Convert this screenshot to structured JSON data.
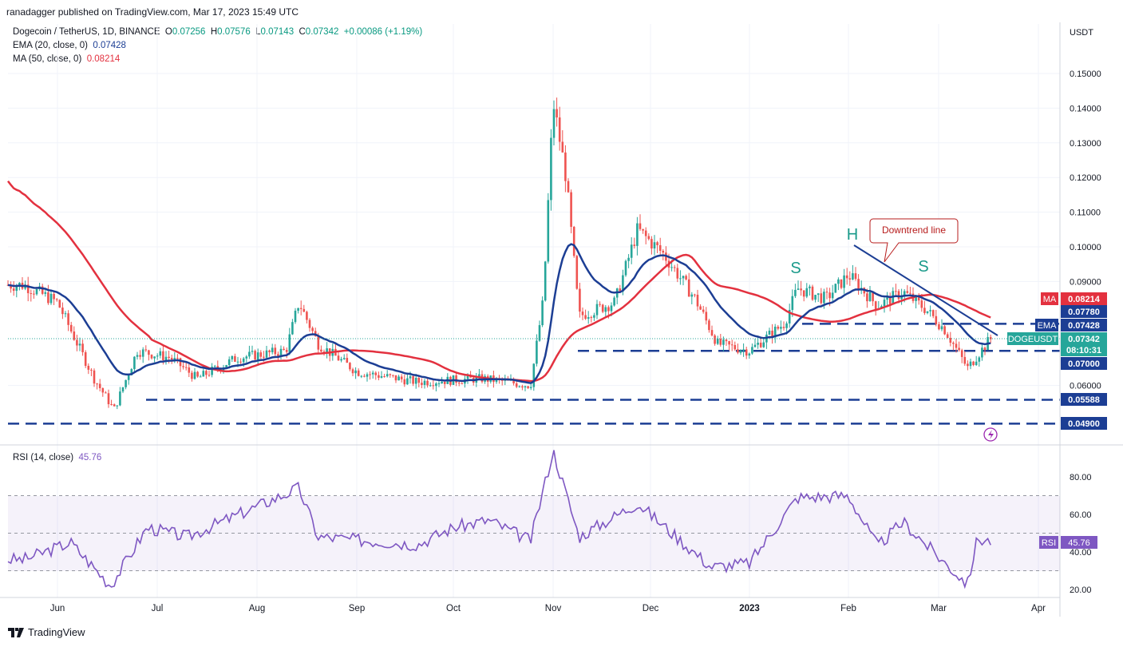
{
  "header": {
    "publisher": "ranadagger published on TradingView.com, Mar 17, 2023 15:49 UTC"
  },
  "legend": {
    "symbol": "Dogecoin / TetherUS, 1D, BINANCE",
    "o_label": "O",
    "o": "0.07256",
    "h_label": "H",
    "h": "0.07576",
    "l_label": "L",
    "l": "0.07143",
    "c_label": "C",
    "c": "0.07342",
    "change": "+0.00086 (+1.19%)",
    "ema_label": "EMA (20, close, 0)",
    "ema_value": "0.07428",
    "ma_label": "MA (50, close, 0)",
    "ma_value": "0.08214"
  },
  "axis": {
    "currency": "USDT",
    "price_ticks": [
      "0.15000",
      "0.14000",
      "0.13000",
      "0.12000",
      "0.11000",
      "0.10000",
      "0.09000",
      "0.06000"
    ],
    "months": [
      "Jun",
      "Jul",
      "Aug",
      "Sep",
      "Oct",
      "Nov",
      "Dec",
      "2023",
      "Feb",
      "Mar",
      "Apr"
    ]
  },
  "price_labels": [
    {
      "text": "MA",
      "value": "0.08214",
      "color": "#e3313f"
    },
    {
      "text": "",
      "value": "0.07780",
      "color": "#1c3e94"
    },
    {
      "text": "EMA",
      "value": "0.07428",
      "color": "#1c3e94"
    },
    {
      "text": "DOGEUSDT",
      "value": "0.07342",
      "color": "#26a69a"
    },
    {
      "text": "",
      "value": "08:10:31",
      "color": "#26a69a"
    },
    {
      "text": "",
      "value": "0.07000",
      "color": "#1c3e94"
    },
    {
      "text": "",
      "value": "0.05588",
      "color": "#1c3e94"
    },
    {
      "text": "",
      "value": "0.04900",
      "color": "#1c3e94"
    }
  ],
  "annotations": {
    "downtrend": "Downtrend line",
    "h": "H",
    "s1": "S",
    "s2": "S"
  },
  "rsi": {
    "label": "RSI (14, close)",
    "value": "45.76",
    "badge": "RSI",
    "ticks": [
      "80.00",
      "60.00",
      "40.00",
      "20.00"
    ]
  },
  "footer": {
    "brand": "TradingView"
  },
  "chart_data": [
    {
      "type": "candlestick",
      "title": "Dogecoin / TetherUS, 1D, BINANCE",
      "x_range": [
        "2023-05-22",
        "2023-04-05"
      ],
      "x_note_months": [
        "Jun",
        "Jul",
        "Aug",
        "Sep",
        "Oct",
        "Nov",
        "Dec",
        "2023",
        "Feb",
        "Mar",
        "Apr"
      ],
      "ylim": [
        0.048,
        0.16
      ],
      "close_path": [
        {
          "x": "May 22",
          "y": 0.089
        },
        {
          "x": "Jun 1",
          "y": 0.084
        },
        {
          "x": "Jun 12",
          "y": 0.062
        },
        {
          "x": "Jun 18",
          "y": 0.053
        },
        {
          "x": "Jun 25",
          "y": 0.07
        },
        {
          "x": "Jul 5",
          "y": 0.068
        },
        {
          "x": "Jul 13",
          "y": 0.062
        },
        {
          "x": "Jul 25",
          "y": 0.068
        },
        {
          "x": "Aug 10",
          "y": 0.07
        },
        {
          "x": "Aug 14",
          "y": 0.084
        },
        {
          "x": "Aug 20",
          "y": 0.072
        },
        {
          "x": "Sep 1",
          "y": 0.064
        },
        {
          "x": "Sep 20",
          "y": 0.061
        },
        {
          "x": "Oct 10",
          "y": 0.062
        },
        {
          "x": "Oct 25",
          "y": 0.06
        },
        {
          "x": "Oct 29",
          "y": 0.085
        },
        {
          "x": "Nov 1",
          "y": 0.142
        },
        {
          "x": "Nov 5",
          "y": 0.12
        },
        {
          "x": "Nov 9",
          "y": 0.08
        },
        {
          "x": "Nov 20",
          "y": 0.084
        },
        {
          "x": "Nov 27",
          "y": 0.105
        },
        {
          "x": "Dec 5",
          "y": 0.098
        },
        {
          "x": "Dec 15",
          "y": 0.085
        },
        {
          "x": "Dec 22",
          "y": 0.072
        },
        {
          "x": "Jan 1",
          "y": 0.07
        },
        {
          "x": "Jan 12",
          "y": 0.078
        },
        {
          "x": "Jan 16",
          "y": 0.088
        },
        {
          "x": "Jan 25",
          "y": 0.085
        },
        {
          "x": "Feb 1",
          "y": 0.092
        },
        {
          "x": "Feb 10",
          "y": 0.083
        },
        {
          "x": "Feb 18",
          "y": 0.087
        },
        {
          "x": "Feb 25",
          "y": 0.082
        },
        {
          "x": "Mar 3",
          "y": 0.076
        },
        {
          "x": "Mar 10",
          "y": 0.065
        },
        {
          "x": "Mar 17",
          "y": 0.0734
        }
      ],
      "ema20": {
        "name": "EMA (20, close, 0)",
        "last": 0.07428
      },
      "ma50": {
        "name": "MA (50, close, 0)",
        "last": 0.08214
      },
      "horizontal_levels": [
        0.0778,
        0.07,
        0.05588,
        0.049
      ],
      "downtrend_line": [
        {
          "x": "Feb 1",
          "y": 0.1
        },
        {
          "x": "Mar 17",
          "y": 0.075
        }
      ],
      "pattern": "head and shoulders (S, H, S)"
    },
    {
      "type": "line",
      "title": "RSI (14, close)",
      "ylim": [
        15,
        98
      ],
      "bands": [
        30,
        50,
        70
      ],
      "last": 45.76,
      "points": [
        {
          "x": "May 22",
          "y": 36
        },
        {
          "x": "Jun 5",
          "y": 45
        },
        {
          "x": "Jun 17",
          "y": 22
        },
        {
          "x": "Jun 28",
          "y": 53
        },
        {
          "x": "Jul 10",
          "y": 48
        },
        {
          "x": "Aug 14",
          "y": 74
        },
        {
          "x": "Aug 20",
          "y": 48
        },
        {
          "x": "Sep 20",
          "y": 44
        },
        {
          "x": "Oct 1",
          "y": 53
        },
        {
          "x": "Oct 12",
          "y": 57
        },
        {
          "x": "Oct 25",
          "y": 46
        },
        {
          "x": "Nov 1",
          "y": 94
        },
        {
          "x": "Nov 9",
          "y": 48
        },
        {
          "x": "Nov 27",
          "y": 66
        },
        {
          "x": "Dec 20",
          "y": 32
        },
        {
          "x": "Jan 1",
          "y": 34
        },
        {
          "x": "Jan 16",
          "y": 69
        },
        {
          "x": "Feb 1",
          "y": 70
        },
        {
          "x": "Feb 10",
          "y": 43
        },
        {
          "x": "Feb 18",
          "y": 56
        },
        {
          "x": "Mar 3",
          "y": 34
        },
        {
          "x": "Mar 10",
          "y": 23
        },
        {
          "x": "Mar 13",
          "y": 47
        },
        {
          "x": "Mar 17",
          "y": 45.76
        }
      ]
    }
  ]
}
